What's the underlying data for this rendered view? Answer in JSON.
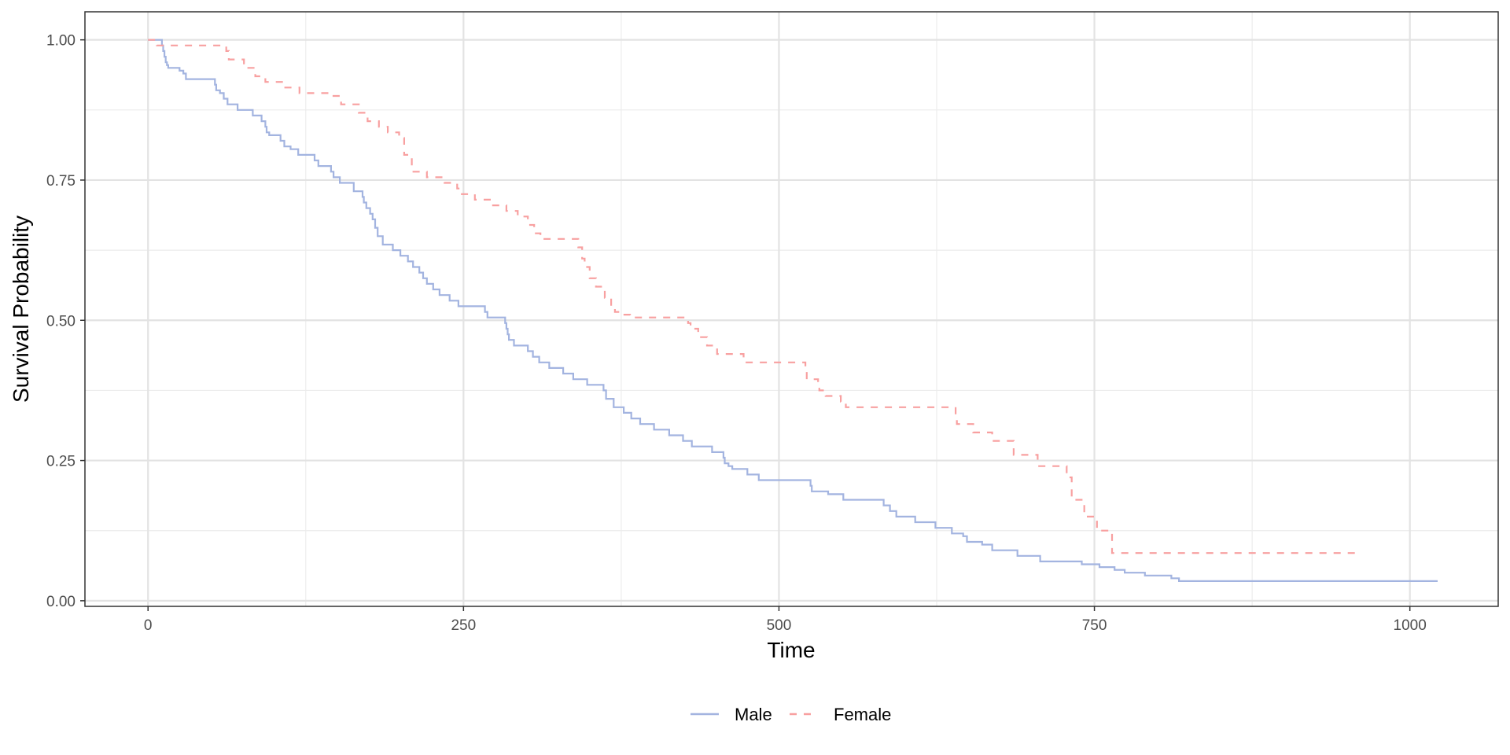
{
  "chart_data": {
    "type": "line",
    "subtype": "kaplan-meier step curves",
    "title": "",
    "xlabel": "Time",
    "ylabel": "Survival Probability",
    "xlim": [
      -50,
      1070
    ],
    "ylim": [
      -0.01,
      1.05
    ],
    "x_ticks": [
      0,
      250,
      500,
      750,
      1000
    ],
    "x_tick_labels": [
      "0",
      "250",
      "500",
      "750",
      "1000"
    ],
    "y_ticks": [
      0,
      0.25,
      0.5,
      0.75,
      1.0
    ],
    "y_tick_labels": [
      "0.00",
      "0.25",
      "0.50",
      "0.75",
      "1.00"
    ],
    "grid": true,
    "legend_position": "bottom",
    "series": [
      {
        "name": "Male",
        "color": "#a3b4e0",
        "dash": "solid",
        "x": [
          0,
          11,
          12,
          13,
          14,
          15,
          16,
          25,
          28,
          30,
          53,
          54,
          57,
          60,
          63,
          71,
          83,
          90,
          93,
          94,
          96,
          105,
          108,
          113,
          119,
          132,
          135,
          145,
          147,
          152,
          163,
          170,
          171,
          173,
          176,
          178,
          180,
          182,
          186,
          194,
          200,
          206,
          210,
          215,
          218,
          221,
          226,
          231,
          239,
          246,
          267,
          269,
          283,
          284,
          285,
          286,
          290,
          301,
          305,
          310,
          318,
          329,
          337,
          348,
          361,
          363,
          369,
          377,
          383,
          390,
          401,
          413,
          424,
          431,
          447,
          456,
          457,
          460,
          463,
          475,
          484,
          525,
          526,
          539,
          551,
          583,
          588,
          593,
          608,
          624,
          637,
          646,
          649,
          661,
          669,
          689,
          707,
          740,
          754,
          766,
          774,
          790,
          811,
          817,
          884,
          1022
        ],
        "y": [
          1.0,
          0.99,
          0.98,
          0.97,
          0.96,
          0.955,
          0.95,
          0.945,
          0.94,
          0.93,
          0.92,
          0.91,
          0.905,
          0.895,
          0.885,
          0.875,
          0.865,
          0.855,
          0.845,
          0.835,
          0.83,
          0.82,
          0.81,
          0.805,
          0.795,
          0.785,
          0.775,
          0.765,
          0.755,
          0.745,
          0.73,
          0.72,
          0.71,
          0.7,
          0.69,
          0.68,
          0.665,
          0.65,
          0.635,
          0.625,
          0.615,
          0.605,
          0.595,
          0.585,
          0.575,
          0.565,
          0.555,
          0.545,
          0.535,
          0.525,
          0.515,
          0.505,
          0.495,
          0.485,
          0.475,
          0.465,
          0.455,
          0.445,
          0.435,
          0.425,
          0.415,
          0.405,
          0.395,
          0.385,
          0.375,
          0.36,
          0.345,
          0.335,
          0.325,
          0.315,
          0.305,
          0.295,
          0.285,
          0.275,
          0.265,
          0.255,
          0.245,
          0.24,
          0.235,
          0.225,
          0.215,
          0.205,
          0.195,
          0.19,
          0.18,
          0.17,
          0.16,
          0.15,
          0.14,
          0.13,
          0.12,
          0.115,
          0.105,
          0.1,
          0.09,
          0.08,
          0.07,
          0.065,
          0.06,
          0.055,
          0.05,
          0.045,
          0.04,
          0.035,
          0.035,
          0.035
        ]
      },
      {
        "name": "Female",
        "color": "#f8a0a0",
        "dash": "dashed",
        "x": [
          0,
          7,
          62,
          64,
          76,
          85,
          93,
          107,
          120,
          145,
          153,
          167,
          174,
          183,
          190,
          199,
          203,
          209,
          221,
          235,
          245,
          248,
          259,
          272,
          284,
          293,
          301,
          306,
          311,
          341,
          344,
          346,
          350,
          355,
          362,
          367,
          370,
          376,
          382,
          428,
          430,
          436,
          443,
          451,
          472,
          521,
          522,
          531,
          532,
          537,
          549,
          553,
          640,
          641,
          654,
          669,
          686,
          705,
          728,
          732,
          742,
          752,
          764,
          962
        ],
        "y": [
          1.0,
          0.99,
          0.98,
          0.965,
          0.95,
          0.935,
          0.925,
          0.915,
          0.905,
          0.9,
          0.885,
          0.87,
          0.855,
          0.845,
          0.835,
          0.825,
          0.795,
          0.765,
          0.755,
          0.745,
          0.735,
          0.725,
          0.715,
          0.705,
          0.695,
          0.685,
          0.67,
          0.655,
          0.645,
          0.63,
          0.61,
          0.595,
          0.575,
          0.56,
          0.54,
          0.525,
          0.515,
          0.51,
          0.505,
          0.495,
          0.485,
          0.47,
          0.455,
          0.44,
          0.425,
          0.41,
          0.395,
          0.385,
          0.375,
          0.365,
          0.355,
          0.345,
          0.33,
          0.315,
          0.3,
          0.285,
          0.26,
          0.24,
          0.22,
          0.18,
          0.15,
          0.125,
          0.085,
          0.085
        ]
      }
    ]
  }
}
